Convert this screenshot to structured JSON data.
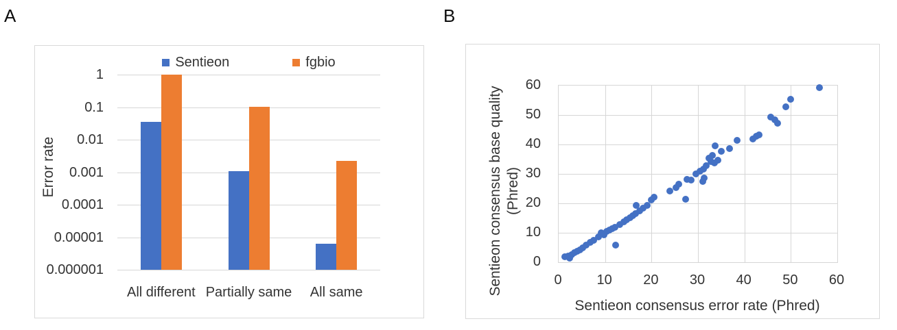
{
  "panels": {
    "a": {
      "label": "A"
    },
    "b": {
      "label": "B"
    }
  },
  "colors": {
    "sentieon_blue": "#4471C4",
    "fgbio_orange": "#ED7D31",
    "gridline": "#D6D6D6",
    "panel_border": "#D9D9D9",
    "text": "#333333"
  },
  "chart_data": [
    {
      "type": "bar",
      "panel": "A",
      "yscale": "log",
      "ylabel": "Error rate",
      "ylim": [
        1e-06,
        1
      ],
      "ytick_labels": [
        "1",
        "0.1",
        "0.01",
        "0.001",
        "0.0001",
        "0.00001",
        "0.000001"
      ],
      "categories": [
        "All different",
        "Partially same",
        "All same"
      ],
      "legend_position": "top",
      "grid": "horizontal",
      "series": [
        {
          "name": "Sentieon",
          "color": "#4471C4",
          "values": [
            0.035,
            0.0011,
            6.4e-06
          ]
        },
        {
          "name": "fgbio",
          "color": "#ED7D31",
          "values": [
            1.0,
            0.105,
            0.0022
          ]
        }
      ]
    },
    {
      "type": "scatter",
      "panel": "B",
      "xlabel": "Sentieon consensus error rate (Phred)",
      "ylabel_line1": "Sentieon consensus base quality",
      "ylabel_line2": "(Phred)",
      "xlim": [
        0,
        60
      ],
      "ylim": [
        0,
        60
      ],
      "xtick_labels": [
        "0",
        "10",
        "20",
        "30",
        "40",
        "50",
        "60"
      ],
      "ytick_labels": [
        "0",
        "10",
        "20",
        "30",
        "40",
        "50",
        "60"
      ],
      "grid": "both",
      "legend": "none",
      "marker_color": "#4471C4",
      "points": [
        [
          1.3,
          1.9
        ],
        [
          2.0,
          2.2
        ],
        [
          2.3,
          1.5
        ],
        [
          2.8,
          2.6
        ],
        [
          3.4,
          3.2
        ],
        [
          4.0,
          3.8
        ],
        [
          4.6,
          4.3
        ],
        [
          5.2,
          5.0
        ],
        [
          5.9,
          5.7
        ],
        [
          6.8,
          6.8
        ],
        [
          7.6,
          7.5
        ],
        [
          8.5,
          8.6
        ],
        [
          9.2,
          9.9
        ],
        [
          9.8,
          9.4
        ],
        [
          10.3,
          10.4
        ],
        [
          10.9,
          10.9
        ],
        [
          11.5,
          11.3
        ],
        [
          12.1,
          11.9
        ],
        [
          12.3,
          5.8
        ],
        [
          13.1,
          12.9
        ],
        [
          14.0,
          13.8
        ],
        [
          14.7,
          14.4
        ],
        [
          15.3,
          15.2
        ],
        [
          15.9,
          15.7
        ],
        [
          16.6,
          16.5
        ],
        [
          16.7,
          19.4
        ],
        [
          17.4,
          17.4
        ],
        [
          18.2,
          18.4
        ],
        [
          19.0,
          19.2
        ],
        [
          20.0,
          21.1
        ],
        [
          20.6,
          22.0
        ],
        [
          23.9,
          24.3
        ],
        [
          25.2,
          25.3
        ],
        [
          25.9,
          26.4
        ],
        [
          27.3,
          21.3
        ],
        [
          27.6,
          28.1
        ],
        [
          28.5,
          27.8
        ],
        [
          29.6,
          30.1
        ],
        [
          30.4,
          31.0
        ],
        [
          31.0,
          27.5
        ],
        [
          31.3,
          28.5
        ],
        [
          31.2,
          31.7
        ],
        [
          31.8,
          32.8
        ],
        [
          32.4,
          35.3
        ],
        [
          32.8,
          34.2
        ],
        [
          33.1,
          36.2
        ],
        [
          33.5,
          33.8
        ],
        [
          33.7,
          39.5
        ],
        [
          34.3,
          34.7
        ],
        [
          35.0,
          37.7
        ],
        [
          36.8,
          38.5
        ],
        [
          38.4,
          41.4
        ],
        [
          41.8,
          41.9
        ],
        [
          42.5,
          42.7
        ],
        [
          43.1,
          43.3
        ],
        [
          45.7,
          49.4
        ],
        [
          46.5,
          48.4
        ],
        [
          47.2,
          47.2
        ],
        [
          48.9,
          52.9
        ],
        [
          49.9,
          55.3
        ],
        [
          56.2,
          59.2
        ]
      ]
    }
  ]
}
